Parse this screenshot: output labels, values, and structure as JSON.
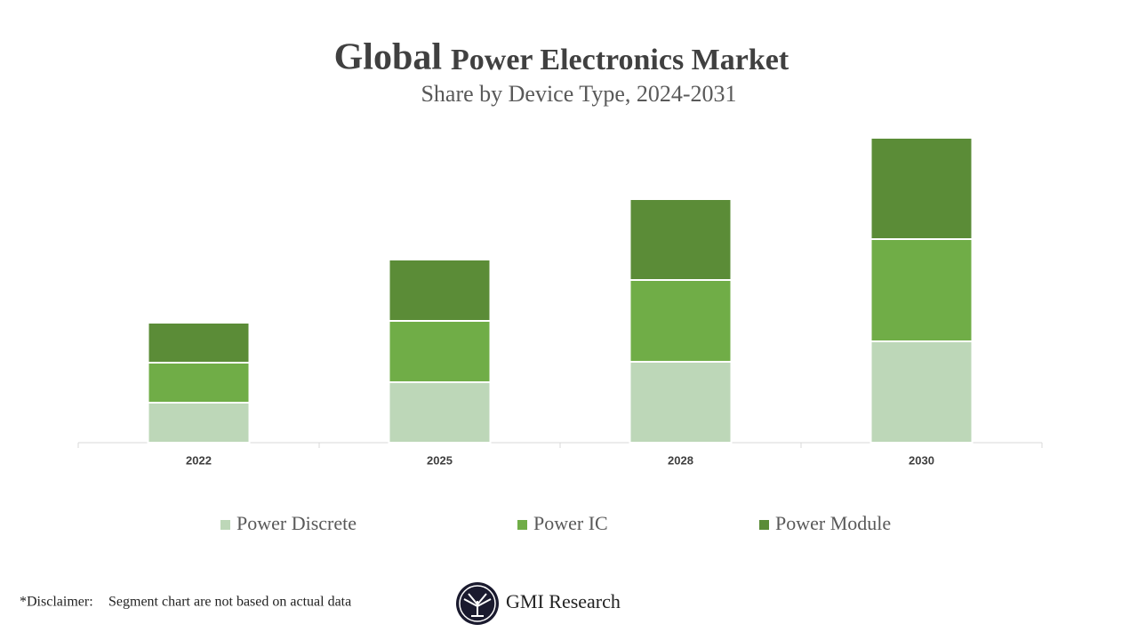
{
  "chart_data": {
    "type": "stacked_bar",
    "title": {
      "lead": "Global",
      "rest": "Power Electronics Market"
    },
    "subtitle": "Share by Device Type, 2024-2031",
    "categories": [
      "2022",
      "2025",
      "2028",
      "2030"
    ],
    "series": [
      {
        "name": "Power Discrete",
        "color": "#bdd7b8",
        "values": [
          45,
          68,
          91,
          114
        ]
      },
      {
        "name": "Power IC",
        "color": "#70ad47",
        "values": [
          45,
          69,
          92,
          115
        ]
      },
      {
        "name": "Power Module",
        "color": "#5b8c37",
        "values": [
          45,
          69,
          91,
          114
        ]
      }
    ],
    "ylim": [
      0,
      350
    ],
    "legend": "bottom",
    "disclaimer": {
      "label": "*Disclaimer:",
      "text": "Segment chart are not based on actual data"
    },
    "brand": "GMI Research"
  }
}
